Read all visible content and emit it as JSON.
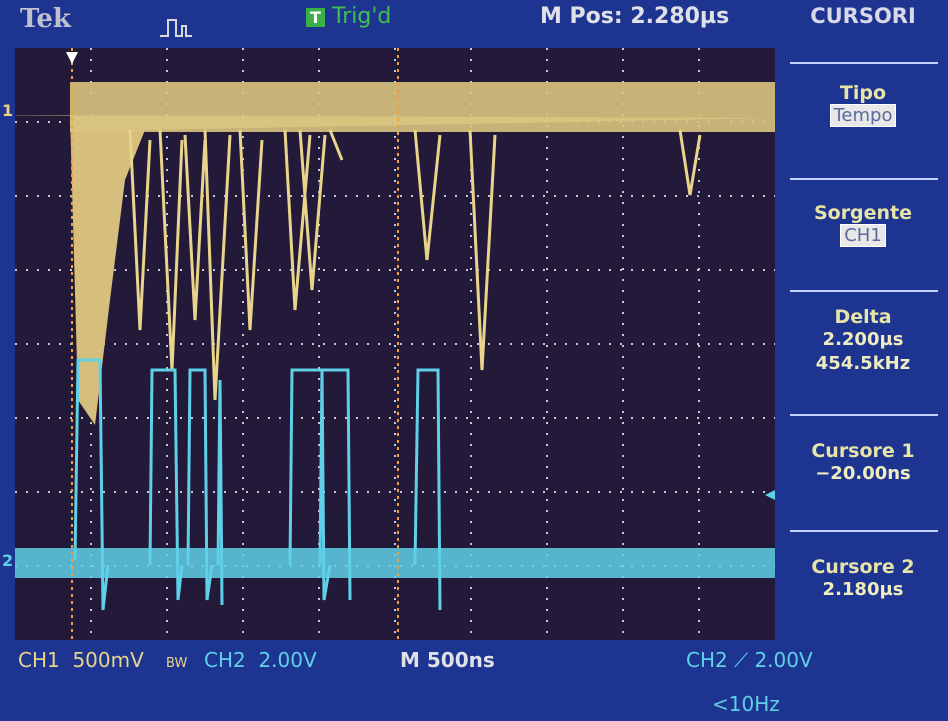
{
  "header": {
    "brand": "Tek",
    "trigger_icon": "T",
    "trigger_status": "Trig'd",
    "position": "M Pos: 2.280µs"
  },
  "menu": {
    "title": "CURSORI",
    "type": {
      "label": "Tipo",
      "value": "Tempo"
    },
    "source": {
      "label": "Sorgente",
      "value": "CH1"
    },
    "delta": {
      "label": "Delta",
      "values": [
        "2.200µs",
        "454.5kHz"
      ]
    },
    "cursor1": {
      "label": "Cursore 1",
      "value": "−20.00ns"
    },
    "cursor2": {
      "label": "Cursore 2",
      "value": "2.180µs"
    }
  },
  "channel_markers": [
    "1",
    "2"
  ],
  "footer": {
    "ch1": "CH1  500mV",
    "bw": "BW",
    "ch2": "CH2  2.00V",
    "timebase": "M 500ns",
    "trigger": "CH2 ⟋ 2.00V",
    "frequency": "<10Hz"
  }
}
